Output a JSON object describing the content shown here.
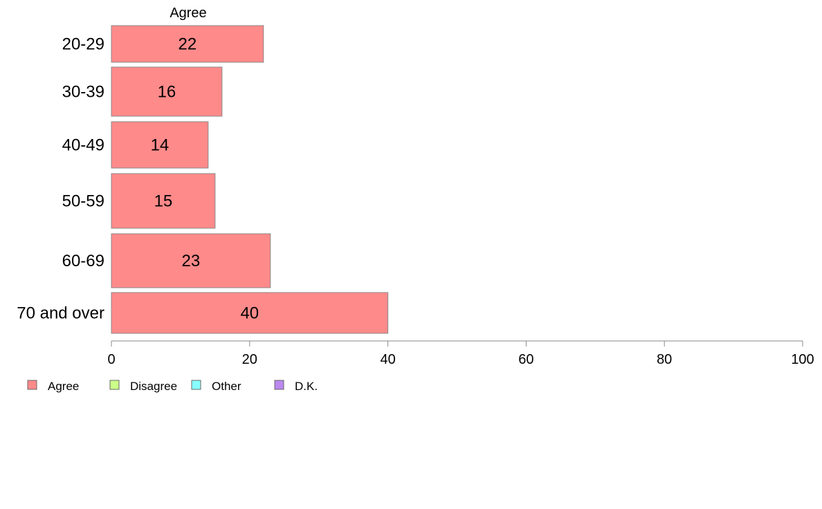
{
  "chart_data": {
    "type": "bar",
    "orientation": "horizontal",
    "panel_title": "Agree",
    "categories": [
      "20-29",
      "30-39",
      "40-49",
      "50-59",
      "60-69",
      "70 and over"
    ],
    "series": [
      {
        "name": "Agree",
        "values": [
          22,
          16,
          14,
          15,
          23,
          40
        ],
        "color": "#FF8A8A"
      }
    ],
    "data_labels": [
      "22",
      "16",
      "14",
      "15",
      "23",
      "40"
    ],
    "xlim": [
      0,
      100
    ],
    "xticks": [
      0,
      20,
      40,
      60,
      80,
      100
    ],
    "grid": false,
    "legend": {
      "placement": "bottom-left",
      "items": [
        {
          "label": "Agree",
          "color": "#FF8A8A"
        },
        {
          "label": "Disagree",
          "color": "#CCFF88"
        },
        {
          "label": "Other",
          "color": "#88FFFF"
        },
        {
          "label": "D.K.",
          "color": "#BB88EE"
        }
      ]
    }
  }
}
